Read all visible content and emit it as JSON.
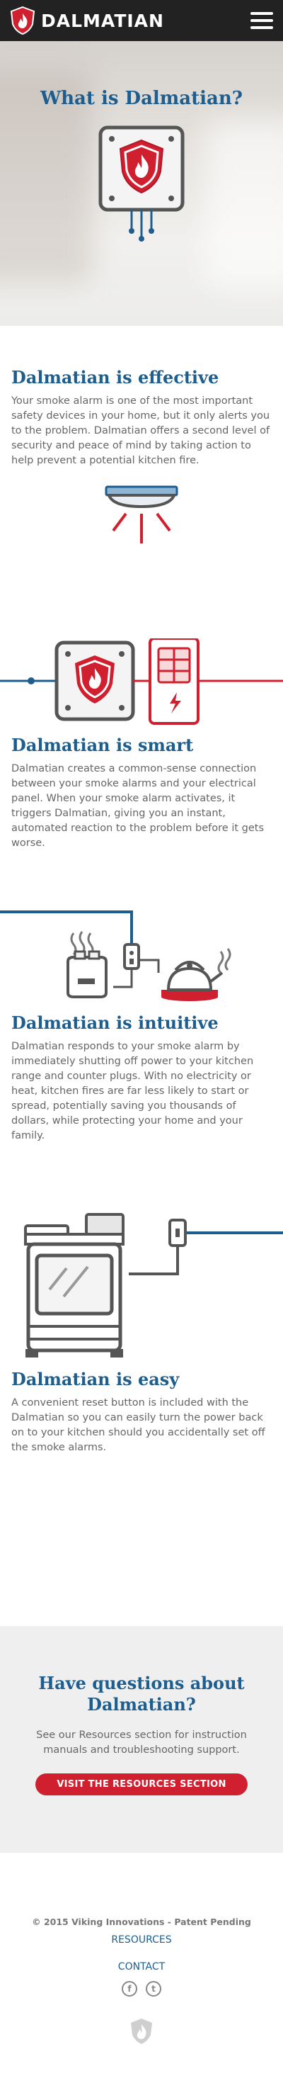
{
  "header": {
    "brand_name": "DALMATIAN",
    "menu_icon": "hamburger-menu-icon"
  },
  "hero": {
    "title": "What is Dalmatian?"
  },
  "sections": [
    {
      "title": "Dalmatian is effective",
      "text": "Your smoke alarm is one of the most important safety devices in your home, but it only alerts you to the problem. Dalmatian offers a second level of security and peace of mind by taking action to help prevent a potential kitchen fire."
    },
    {
      "title": "Dalmatian is smart",
      "text": "Dalmatian creates a common-sense connection between your smoke alarms and your electrical panel. When your smoke alarm activates, it triggers Dalmatian, giving you an instant, automated reaction to the problem before it gets worse."
    },
    {
      "title": "Dalmatian is intuitive",
      "text": "Dalmatian responds to your smoke alarm by immediately shutting off power to your kitchen range and counter plugs. With no electricity or heat, kitchen fires are far less likely to start or spread, potentially saving you thousands of dollars, while protecting your home and your family."
    },
    {
      "title": "Dalmatian is easy",
      "text": "A convenient reset button is included with the Dalmatian so you can easily turn the power back on to your kitchen should you accidentally set off the smoke alarms."
    }
  ],
  "cta": {
    "title": "Have questions about Dalmatian?",
    "text": "See our Resources section for instruction manuals and troubleshooting support.",
    "button_label": "VISIT THE RESOURCES SECTION"
  },
  "footer": {
    "copyright": "© 2015 Viking Innovations - Patent Pending",
    "links": [
      "RESOURCES",
      "CONTACT"
    ],
    "socials": [
      "facebook-icon",
      "twitter-icon"
    ]
  },
  "colors": {
    "brand_red": "#d02030",
    "brand_blue": "#1d5e8f",
    "header_bg": "#222222",
    "cta_bg": "#efefef"
  }
}
